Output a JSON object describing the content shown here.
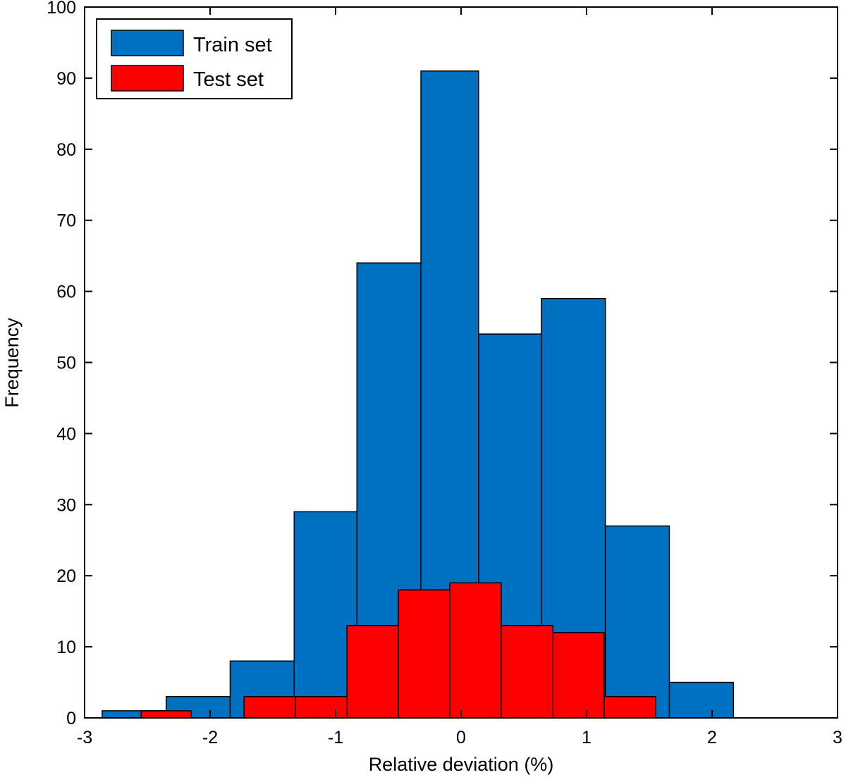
{
  "chart_data": {
    "type": "bar",
    "title": "",
    "xlabel": "Relative deviation (%)",
    "ylabel": "Frequency",
    "xlim": [
      -3,
      3
    ],
    "ylim": [
      0,
      100
    ],
    "xticks": [
      "-3",
      "-2",
      "-1",
      "0",
      "1",
      "2",
      "3"
    ],
    "yticks": [
      "0",
      "10",
      "20",
      "30",
      "40",
      "50",
      "60",
      "70",
      "80",
      "90",
      "100"
    ],
    "grid": false,
    "legend_position": "top-left",
    "series": [
      {
        "name": "Train set",
        "color": "#0070c0",
        "bins": [
          {
            "x0": -2.86,
            "x1": -2.35,
            "value": 1
          },
          {
            "x0": -2.35,
            "x1": -1.84,
            "value": 3
          },
          {
            "x0": -1.84,
            "x1": -1.33,
            "value": 8
          },
          {
            "x0": -1.33,
            "x1": -0.83,
            "value": 29
          },
          {
            "x0": -0.83,
            "x1": -0.32,
            "value": 64
          },
          {
            "x0": -0.32,
            "x1": 0.14,
            "value": 91
          },
          {
            "x0": 0.14,
            "x1": 0.64,
            "value": 54
          },
          {
            "x0": 0.64,
            "x1": 1.15,
            "value": 59
          },
          {
            "x0": 1.15,
            "x1": 1.66,
            "value": 27
          },
          {
            "x0": 1.66,
            "x1": 2.17,
            "value": 5
          }
        ]
      },
      {
        "name": "Test set",
        "color": "#ff0000",
        "bins": [
          {
            "x0": -2.55,
            "x1": -2.15,
            "value": 1
          },
          {
            "x0": -1.73,
            "x1": -1.32,
            "value": 3
          },
          {
            "x0": -1.32,
            "x1": -0.91,
            "value": 3
          },
          {
            "x0": -0.91,
            "x1": -0.5,
            "value": 13
          },
          {
            "x0": -0.5,
            "x1": -0.09,
            "value": 18
          },
          {
            "x0": -0.09,
            "x1": 0.32,
            "value": 19
          },
          {
            "x0": 0.32,
            "x1": 0.73,
            "value": 13
          },
          {
            "x0": 0.73,
            "x1": 1.14,
            "value": 12
          },
          {
            "x0": 1.14,
            "x1": 1.55,
            "value": 3
          }
        ]
      }
    ]
  }
}
